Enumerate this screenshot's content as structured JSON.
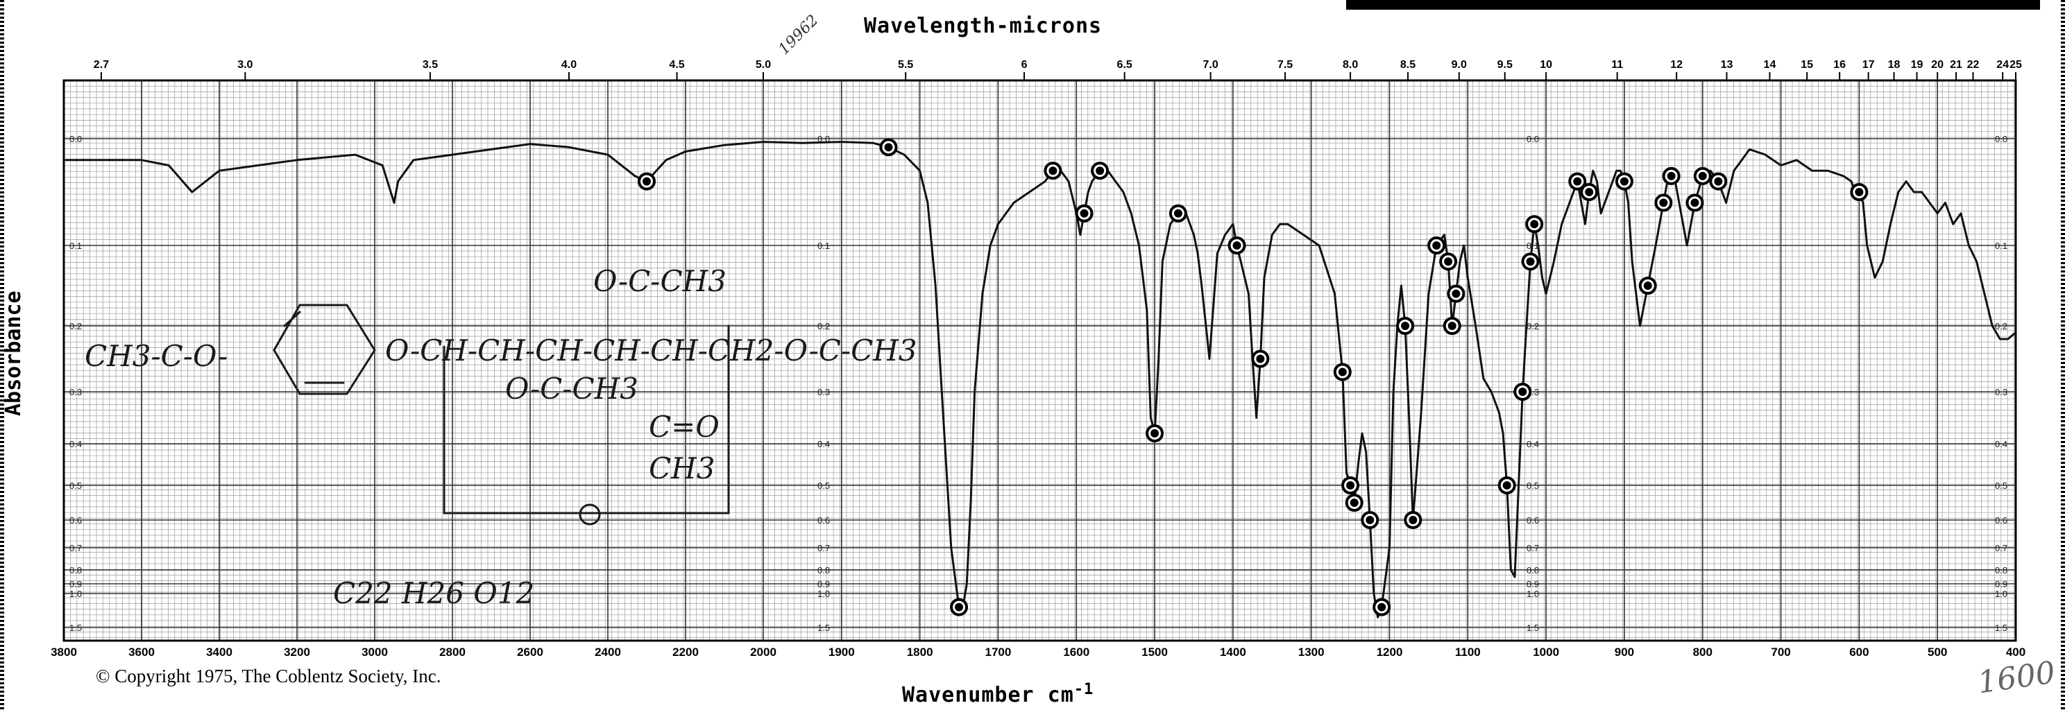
{
  "page": {
    "title": "Wavelength-microns",
    "xlabel": "Wavenumber cm",
    "xlabel_sup": "-1",
    "ylabel": "Absorbance",
    "copyright": "© Copyright 1975, The Coblentz Society, Inc.",
    "handwritten_top": "19962",
    "handwritten_br": "1600"
  },
  "chart_data": {
    "type": "line",
    "title": "Wavelength-microns",
    "xlabel": "Wavenumber cm-1",
    "ylabel": "Absorbance",
    "grid": true,
    "x_axis": {
      "segments": [
        [
          3800,
          2000
        ],
        [
          2000,
          400
        ]
      ],
      "ticks": [
        3800,
        3600,
        3400,
        3200,
        3000,
        2800,
        2600,
        2400,
        2200,
        2000,
        1900,
        1800,
        1700,
        1600,
        1500,
        1400,
        1300,
        1200,
        1100,
        1000,
        900,
        800,
        700,
        600,
        500,
        400
      ]
    },
    "top_axis": {
      "unit": "microns",
      "ticks": [
        "2.7",
        "3.0",
        "3.5",
        "4.0",
        "4.5",
        "5.0",
        "5.5",
        "6",
        "6.5",
        "7.0",
        "7.5",
        "8.0",
        "8.5",
        "9.0",
        "9.5",
        "10",
        "11",
        "12",
        "13",
        "14",
        "15",
        "16",
        "17",
        "18",
        "19",
        "20",
        "21",
        "22",
        "24",
        "25"
      ]
    },
    "y_axis": {
      "ticks": [
        "0.0",
        "0.1",
        "0.2",
        "0.3",
        "0.4",
        "0.5",
        "0.6",
        "0.7",
        "0.8",
        "0.9",
        "1.0",
        "1.5"
      ],
      "tick_values": [
        0.0,
        0.1,
        0.2,
        0.3,
        0.4,
        0.5,
        0.6,
        0.7,
        0.8,
        0.9,
        1.0,
        1.5
      ],
      "inverted": true
    },
    "series": [
      {
        "x": [
          3800,
          3700,
          3600,
          3530,
          3470,
          3400,
          3300,
          3200,
          3050,
          2980,
          2950,
          2940,
          2900,
          2800,
          2700,
          2600,
          2500,
          2400,
          2330,
          2300,
          2250,
          2200,
          2100,
          2000,
          1950,
          1900,
          1860,
          1840,
          1820,
          1800,
          1790,
          1780,
          1770,
          1760,
          1750,
          1745,
          1740,
          1735,
          1730,
          1720,
          1710,
          1700,
          1680,
          1660,
          1640,
          1630,
          1620,
          1610,
          1600,
          1595,
          1590,
          1585,
          1580,
          1570,
          1560,
          1550,
          1540,
          1530,
          1520,
          1510,
          1505,
          1500,
          1495,
          1490,
          1480,
          1470,
          1460,
          1450,
          1445,
          1440,
          1430,
          1420,
          1410,
          1400,
          1395,
          1390,
          1380,
          1375,
          1370,
          1365,
          1360,
          1350,
          1340,
          1330,
          1310,
          1290,
          1280,
          1270,
          1260,
          1255,
          1250,
          1245,
          1240,
          1235,
          1230,
          1225,
          1220,
          1215,
          1210,
          1200,
          1195,
          1190,
          1185,
          1180,
          1175,
          1170,
          1160,
          1150,
          1140,
          1130,
          1125,
          1120,
          1115,
          1110,
          1105,
          1100,
          1090,
          1080,
          1070,
          1065,
          1060,
          1055,
          1050,
          1045,
          1040,
          1035,
          1030,
          1025,
          1020,
          1015,
          1010,
          1005,
          1000,
          990,
          980,
          970,
          965,
          960,
          955,
          950,
          945,
          940,
          935,
          930,
          920,
          910,
          905,
          900,
          895,
          890,
          880,
          870,
          860,
          850,
          845,
          840,
          835,
          830,
          820,
          810,
          800,
          790,
          780,
          770,
          760,
          750,
          740,
          720,
          700,
          680,
          660,
          640,
          620,
          610,
          605,
          600,
          595,
          590,
          580,
          570,
          560,
          550,
          540,
          530,
          520,
          510,
          500,
          490,
          480,
          470,
          460,
          450,
          440,
          430,
          420,
          410,
          400
        ],
        "y": [
          0.02,
          0.02,
          0.02,
          0.025,
          0.05,
          0.03,
          0.025,
          0.02,
          0.015,
          0.025,
          0.06,
          0.04,
          0.02,
          0.015,
          0.01,
          0.005,
          0.008,
          0.015,
          0.035,
          0.04,
          0.02,
          0.012,
          0.006,
          0.003,
          0.004,
          0.003,
          0.004,
          0.008,
          0.015,
          0.03,
          0.06,
          0.15,
          0.35,
          0.7,
          1.2,
          1.2,
          0.9,
          0.55,
          0.3,
          0.16,
          0.1,
          0.08,
          0.06,
          0.05,
          0.04,
          0.03,
          0.03,
          0.04,
          0.07,
          0.09,
          0.07,
          0.05,
          0.04,
          0.03,
          0.03,
          0.04,
          0.05,
          0.07,
          0.1,
          0.18,
          0.35,
          0.38,
          0.25,
          0.12,
          0.08,
          0.07,
          0.07,
          0.09,
          0.11,
          0.15,
          0.25,
          0.11,
          0.09,
          0.08,
          0.1,
          0.12,
          0.16,
          0.25,
          0.35,
          0.25,
          0.14,
          0.09,
          0.08,
          0.08,
          0.09,
          0.1,
          0.13,
          0.16,
          0.27,
          0.47,
          0.5,
          0.55,
          0.45,
          0.38,
          0.42,
          0.6,
          1.0,
          1.35,
          1.2,
          0.7,
          0.3,
          0.2,
          0.15,
          0.2,
          0.35,
          0.6,
          0.35,
          0.16,
          0.1,
          0.09,
          0.12,
          0.2,
          0.16,
          0.12,
          0.1,
          0.14,
          0.2,
          0.28,
          0.3,
          0.32,
          0.34,
          0.38,
          0.5,
          0.8,
          0.85,
          0.5,
          0.3,
          0.2,
          0.12,
          0.08,
          0.1,
          0.14,
          0.16,
          0.12,
          0.08,
          0.06,
          0.05,
          0.04,
          0.06,
          0.08,
          0.05,
          0.03,
          0.04,
          0.07,
          0.05,
          0.03,
          0.03,
          0.04,
          0.06,
          0.12,
          0.2,
          0.15,
          0.1,
          0.06,
          0.04,
          0.035,
          0.04,
          0.06,
          0.1,
          0.06,
          0.035,
          0.03,
          0.04,
          0.06,
          0.03,
          0.02,
          0.01,
          0.015,
          0.025,
          0.02,
          0.03,
          0.03,
          0.035,
          0.04,
          0.05,
          0.05,
          0.06,
          0.1,
          0.14,
          0.12,
          0.08,
          0.05,
          0.04,
          0.05,
          0.05,
          0.06,
          0.07,
          0.06,
          0.08,
          0.07,
          0.1,
          0.12,
          0.16,
          0.2,
          0.22,
          0.22,
          0.21
        ]
      }
    ]
  }
}
